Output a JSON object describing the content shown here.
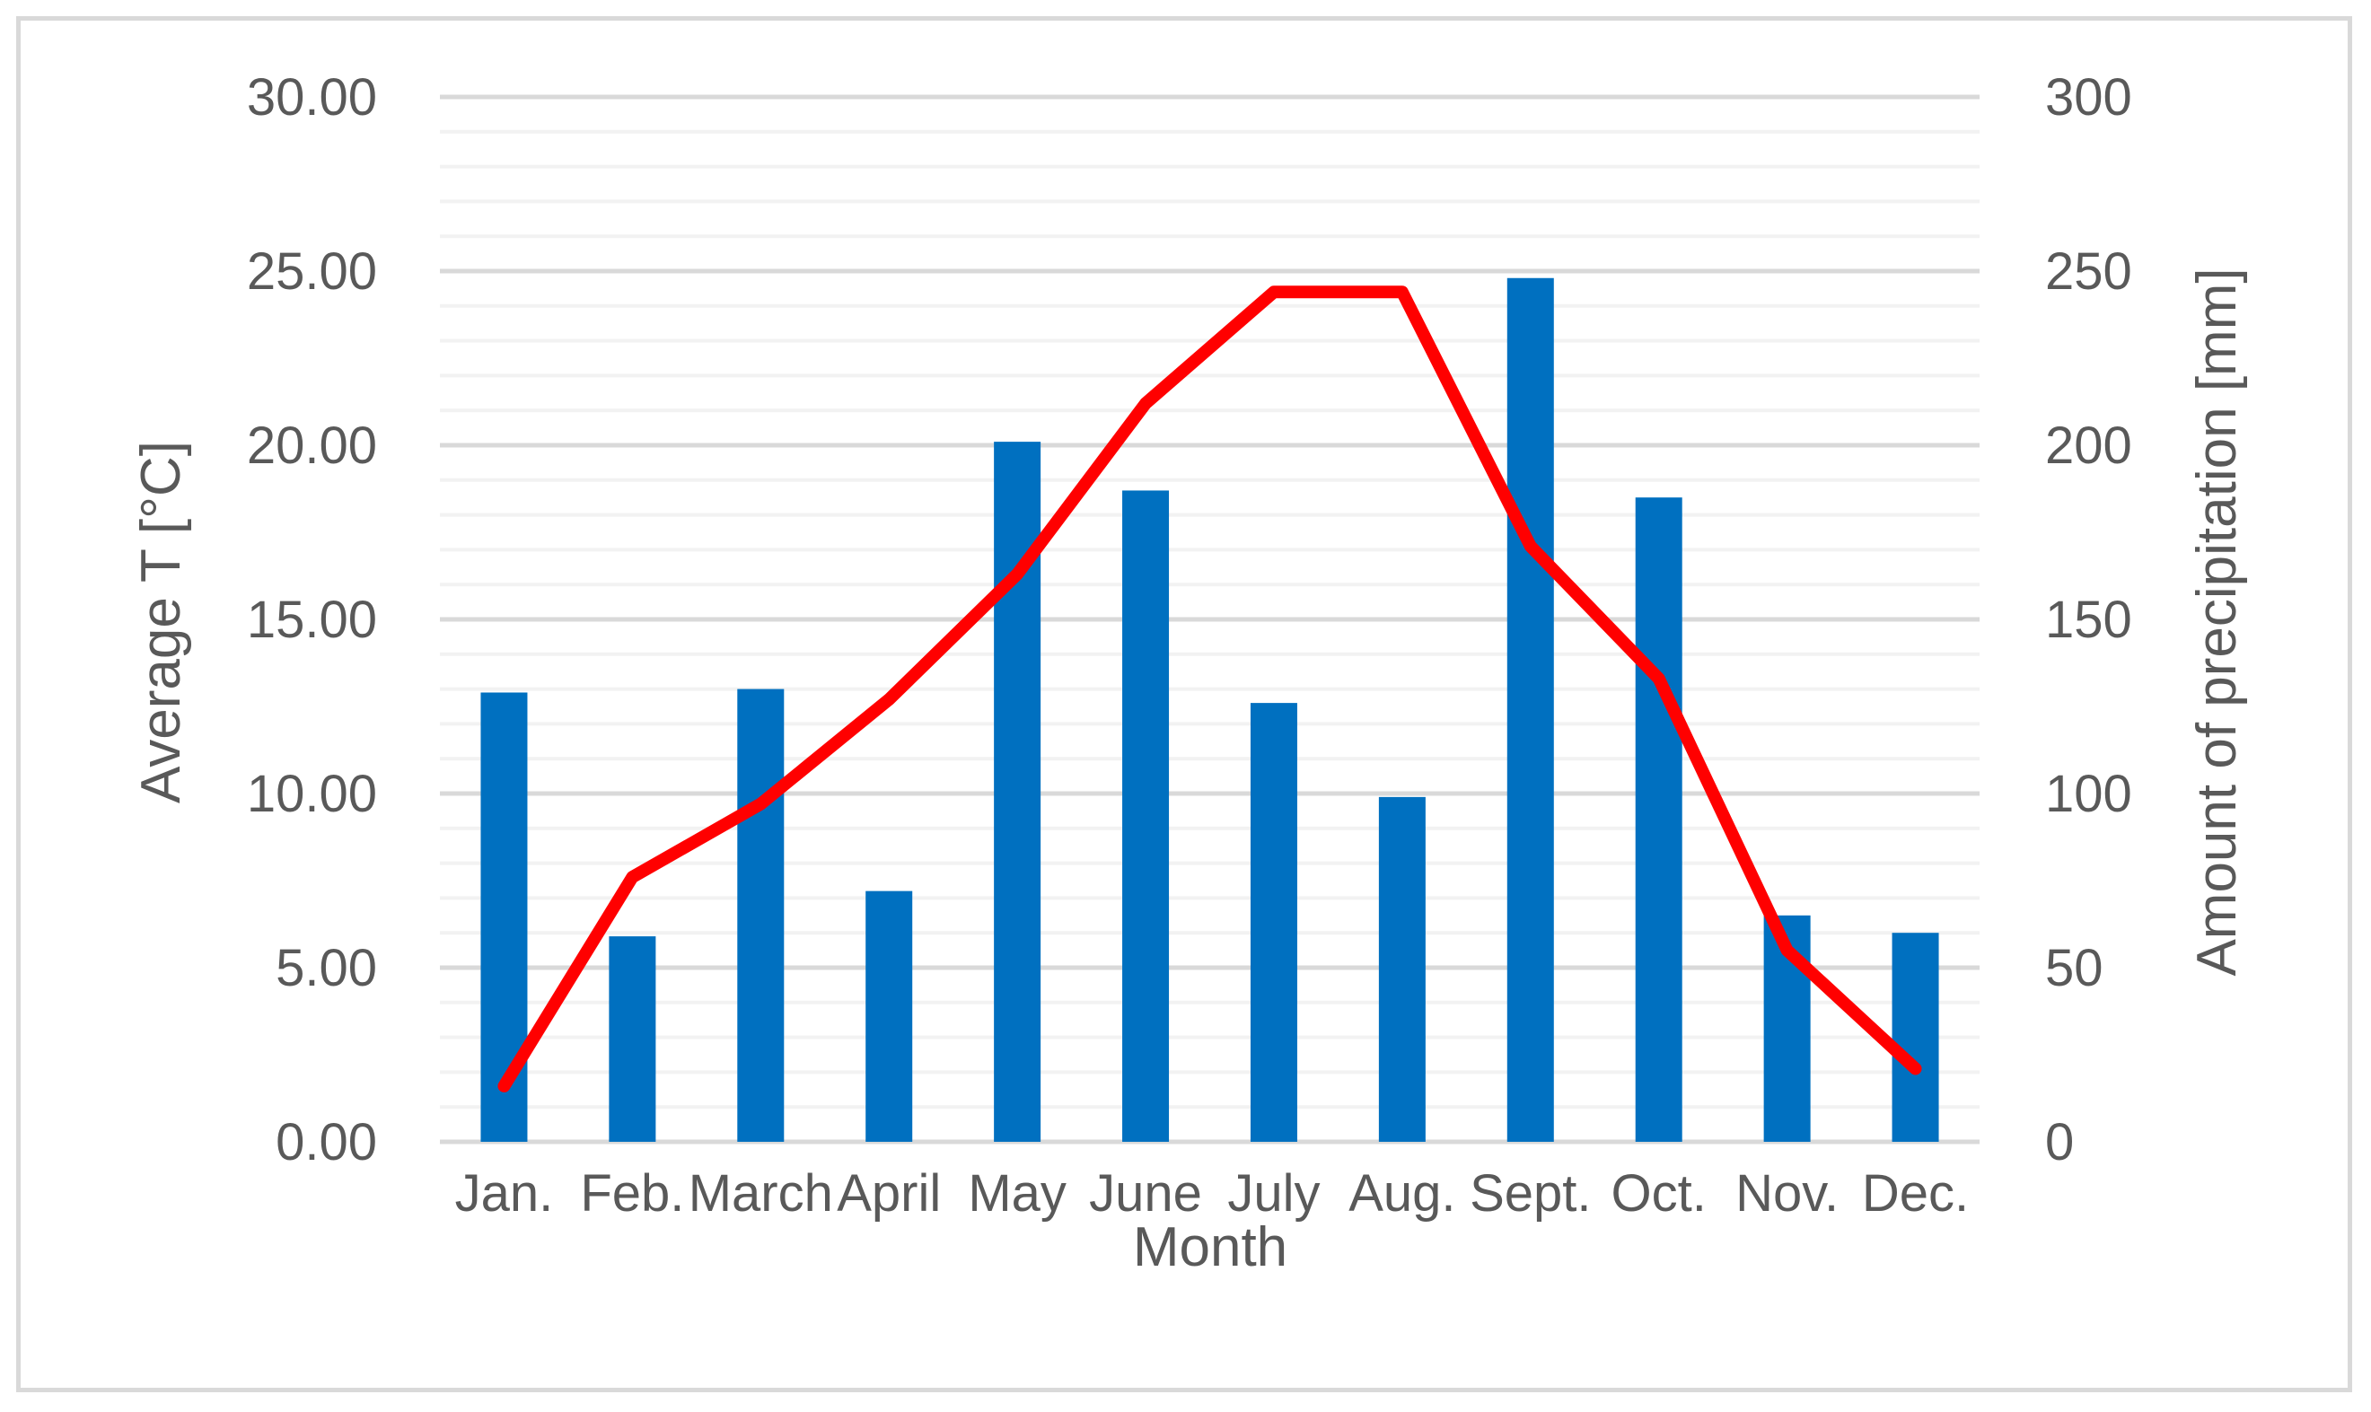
{
  "chart_data": {
    "type": "bar",
    "title": "",
    "xlabel": "Month",
    "ylabel": "Average T [°C]",
    "y2label": "Amount of precipitation [mm]",
    "categories": [
      "Jan.",
      "Feb.",
      "March",
      "April",
      "May",
      "June",
      "July",
      "Aug.",
      "Sept.",
      "Oct.",
      "Nov.",
      "Dec."
    ],
    "ylim": [
      0,
      30
    ],
    "y2lim": [
      0,
      300
    ],
    "yticks": [
      "0.00",
      "5.00",
      "10.00",
      "15.00",
      "20.00",
      "25.00",
      "30.00"
    ],
    "y2ticks": [
      "0",
      "50",
      "100",
      "150",
      "200",
      "250",
      "300"
    ],
    "grid": true,
    "legend": "none",
    "series": [
      {
        "type": "bar",
        "axis": "secondary",
        "color": "#0070c0",
        "values": [
          129,
          59,
          130,
          72,
          201,
          187,
          126,
          99,
          248,
          185,
          65,
          60
        ]
      },
      {
        "type": "line",
        "axis": "primary",
        "color": "#ff0000",
        "values": [
          1.6,
          7.6,
          9.7,
          12.7,
          16.3,
          21.2,
          24.4,
          24.4,
          17.1,
          13.3,
          5.5,
          2.1
        ]
      }
    ]
  }
}
